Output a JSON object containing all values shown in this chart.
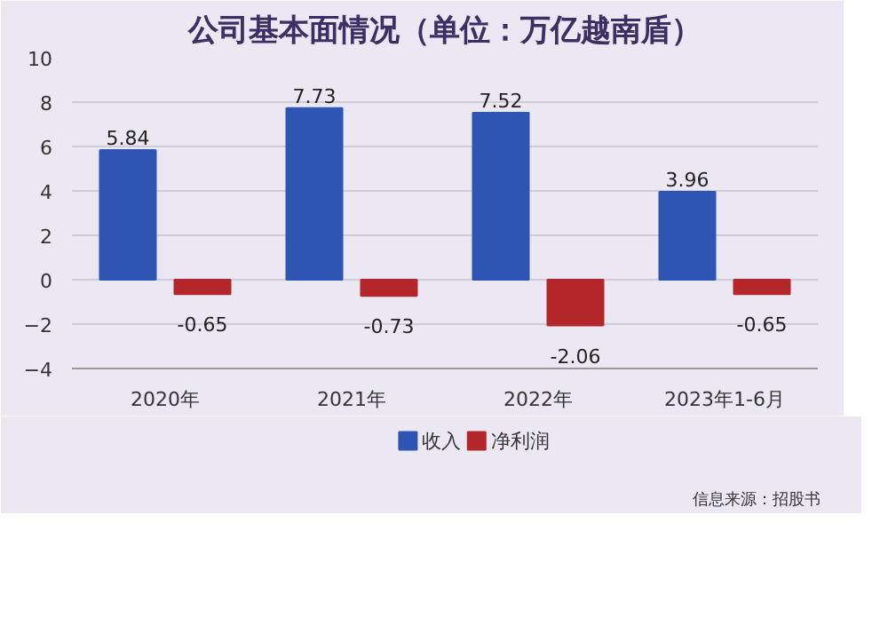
{
  "chart_data": {
    "type": "bar",
    "title": "公司基本面情况（单位：万亿越南盾）",
    "categories": [
      "2020年",
      "2021年",
      "2022年",
      "2023年1-6月"
    ],
    "series": [
      {
        "name": "收入",
        "color": "#2f55b4",
        "values": [
          5.84,
          7.73,
          7.52,
          3.96
        ]
      },
      {
        "name": "净利润",
        "color": "#b3272b",
        "values": [
          -0.65,
          -0.73,
          -2.06,
          -0.65
        ]
      }
    ],
    "ylim": [
      -4,
      10
    ],
    "yticks": [
      -4,
      -2,
      0,
      2,
      4,
      6,
      8,
      10
    ],
    "grid": "y",
    "legend": "bottom",
    "data_labels": true,
    "annotations": [
      "信息来源：招股书"
    ]
  }
}
